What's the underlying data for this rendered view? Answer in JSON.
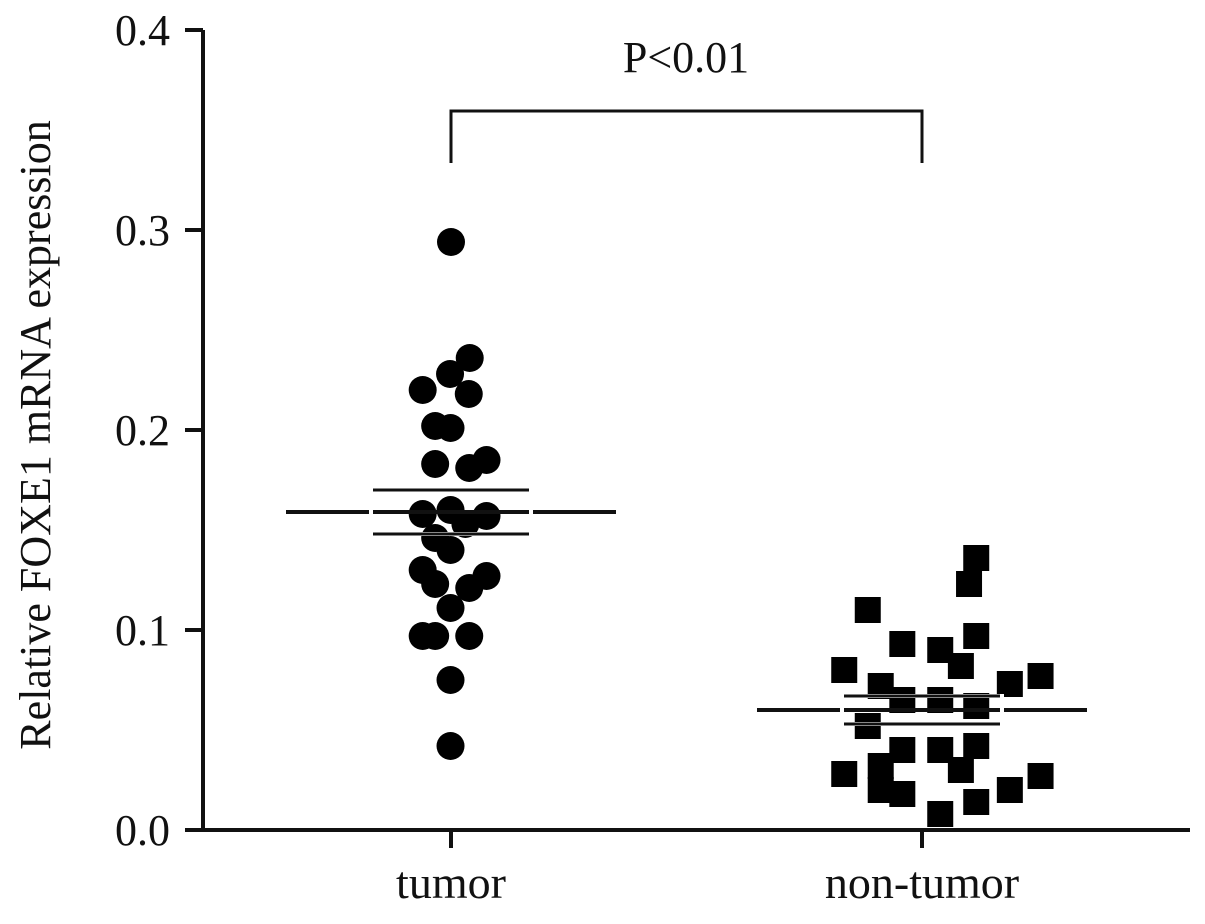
{
  "chart_data": {
    "type": "scatter",
    "title": "",
    "xlabel": "",
    "ylabel": "Relative FOXE1 mRNA expression",
    "ylim": [
      0.0,
      0.4
    ],
    "yticks": [
      0.0,
      0.1,
      0.2,
      0.3,
      0.4
    ],
    "ytick_labels": [
      "0.0",
      "0.1",
      "0.2",
      "0.3",
      "0.4"
    ],
    "categories": [
      "tumor",
      "non-tumor"
    ],
    "grid": false,
    "legend": "none",
    "annotation": {
      "text": "P<0.01"
    },
    "colors": {
      "marker": "#000000",
      "axis": "#111111"
    },
    "series": [
      {
        "category": "tumor",
        "marker": "circle",
        "mean": 0.159,
        "sem_low": 0.148,
        "sem_high": 0.17,
        "points": [
          {
            "offset": 0.0,
            "y": 0.294
          },
          {
            "offset": 0.39,
            "y": 0.236
          },
          {
            "offset": -0.59,
            "y": 0.22
          },
          {
            "offset": -0.02,
            "y": 0.228
          },
          {
            "offset": 0.37,
            "y": 0.218
          },
          {
            "offset": -0.33,
            "y": 0.202
          },
          {
            "offset": -0.01,
            "y": 0.201
          },
          {
            "offset": -0.33,
            "y": 0.183
          },
          {
            "offset": 0.38,
            "y": 0.181
          },
          {
            "offset": 0.74,
            "y": 0.185
          },
          {
            "offset": -0.59,
            "y": 0.158
          },
          {
            "offset": -0.33,
            "y": 0.146
          },
          {
            "offset": -0.01,
            "y": 0.16
          },
          {
            "offset": 0.3,
            "y": 0.153
          },
          {
            "offset": 0.74,
            "y": 0.157
          },
          {
            "offset": -0.01,
            "y": 0.14
          },
          {
            "offset": -0.59,
            "y": 0.13
          },
          {
            "offset": -0.33,
            "y": 0.123
          },
          {
            "offset": 0.38,
            "y": 0.121
          },
          {
            "offset": 0.74,
            "y": 0.127
          },
          {
            "offset": -0.01,
            "y": 0.111
          },
          {
            "offset": -0.59,
            "y": 0.097
          },
          {
            "offset": -0.33,
            "y": 0.097
          },
          {
            "offset": 0.38,
            "y": 0.097
          },
          {
            "offset": -0.01,
            "y": 0.075
          },
          {
            "offset": -0.01,
            "y": 0.042
          }
        ]
      },
      {
        "category": "non-tumor",
        "marker": "square",
        "mean": 0.06,
        "sem_low": 0.053,
        "sem_high": 0.067,
        "points": [
          {
            "offset": 1.13,
            "y": 0.136
          },
          {
            "offset": 0.98,
            "y": 0.123
          },
          {
            "offset": -1.13,
            "y": 0.11
          },
          {
            "offset": 1.13,
            "y": 0.097
          },
          {
            "offset": -0.41,
            "y": 0.093
          },
          {
            "offset": 0.38,
            "y": 0.09
          },
          {
            "offset": -1.62,
            "y": 0.08
          },
          {
            "offset": 0.81,
            "y": 0.082
          },
          {
            "offset": 2.47,
            "y": 0.077
          },
          {
            "offset": 1.83,
            "y": 0.073
          },
          {
            "offset": -0.86,
            "y": 0.072
          },
          {
            "offset": -0.41,
            "y": 0.065
          },
          {
            "offset": 0.38,
            "y": 0.065
          },
          {
            "offset": 1.13,
            "y": 0.062
          },
          {
            "offset": -1.13,
            "y": 0.052
          },
          {
            "offset": -0.41,
            "y": 0.04
          },
          {
            "offset": 0.38,
            "y": 0.04
          },
          {
            "offset": 1.13,
            "y": 0.042
          },
          {
            "offset": -0.86,
            "y": 0.032
          },
          {
            "offset": 0.81,
            "y": 0.03
          },
          {
            "offset": -1.62,
            "y": 0.028
          },
          {
            "offset": 2.47,
            "y": 0.027
          },
          {
            "offset": -0.86,
            "y": 0.02
          },
          {
            "offset": -0.41,
            "y": 0.018
          },
          {
            "offset": 1.13,
            "y": 0.014
          },
          {
            "offset": 1.83,
            "y": 0.02
          },
          {
            "offset": 0.38,
            "y": 0.008
          }
        ]
      }
    ]
  }
}
